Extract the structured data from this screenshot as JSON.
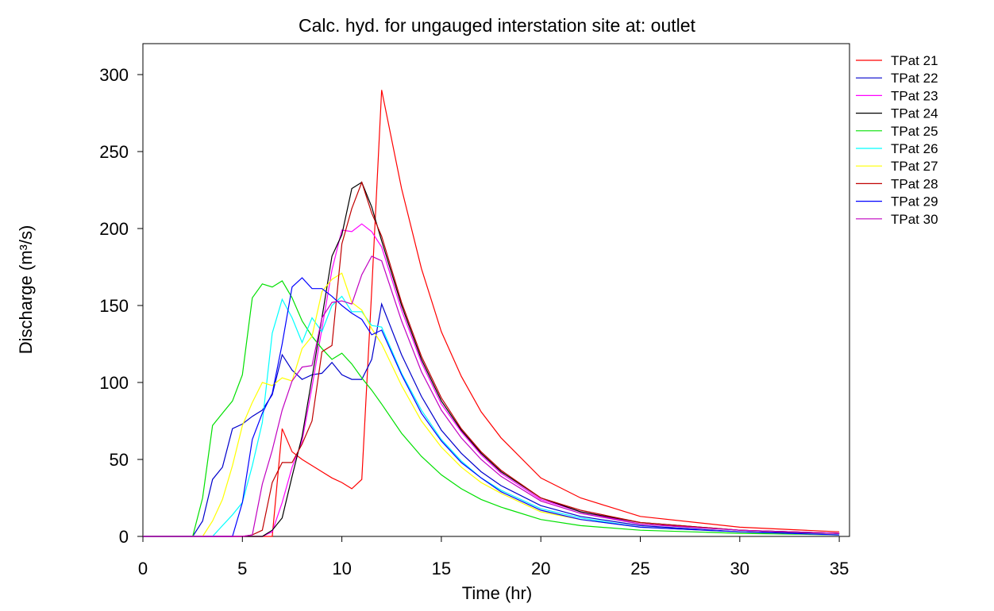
{
  "chart_data": {
    "type": "line",
    "title": "Calc. hyd. for ungauged interstation site at: outlet",
    "xlabel": "Time (hr)",
    "ylabel": "Discharge (m³/s)",
    "xlim": [
      0,
      35
    ],
    "ylim": [
      0,
      320
    ],
    "xticks": [
      0,
      5,
      10,
      15,
      20,
      25,
      30,
      35
    ],
    "yticks": [
      0,
      50,
      100,
      150,
      200,
      250,
      300
    ],
    "grid": false,
    "legend_position": "right",
    "x": [
      0,
      2.5,
      3,
      3.5,
      4,
      4.5,
      5,
      5.5,
      6,
      6.5,
      7,
      7.5,
      8,
      8.5,
      9,
      9.5,
      10,
      10.5,
      11,
      11.5,
      12,
      13,
      14,
      15,
      16,
      17,
      18,
      20,
      22,
      25,
      30,
      35
    ],
    "series": [
      {
        "name": "TPat  21",
        "color": "#ff0000",
        "values": [
          0,
          0,
          0,
          0,
          0,
          0,
          0,
          0,
          0,
          0,
          70,
          55,
          50,
          46,
          42,
          38,
          35,
          31,
          37,
          160,
          290,
          226,
          174,
          133,
          104,
          81,
          64,
          38,
          25,
          13,
          6,
          3
        ]
      },
      {
        "name": "TPat  22",
        "color": "#0000cc",
        "values": [
          0,
          0,
          10,
          37,
          45,
          70,
          73,
          78,
          82,
          92,
          118,
          108,
          102,
          105,
          106,
          113,
          105,
          102,
          102,
          115,
          151,
          118,
          91,
          69,
          54,
          42,
          33,
          20,
          13,
          7,
          3,
          2
        ]
      },
      {
        "name": "TPat  23",
        "color": "#ff00ff",
        "values": [
          0,
          0,
          0,
          0,
          0,
          0,
          0,
          0,
          0,
          3,
          22,
          45,
          62,
          97,
          135,
          173,
          199,
          198,
          203,
          198,
          188,
          147,
          113,
          86,
          68,
          53,
          41,
          24,
          16,
          8,
          4,
          2
        ]
      },
      {
        "name": "TPat  24",
        "color": "#000000",
        "values": [
          0,
          0,
          0,
          0,
          0,
          0,
          0,
          0,
          0,
          4,
          12,
          39,
          65,
          103,
          142,
          182,
          196,
          226,
          230,
          214,
          192,
          150,
          115,
          88,
          69,
          54,
          42,
          25,
          16,
          9,
          4,
          2
        ]
      },
      {
        "name": "TPat  25",
        "color": "#00e000",
        "values": [
          0,
          0,
          25,
          72,
          80,
          88,
          105,
          155,
          164,
          162,
          166,
          155,
          140,
          130,
          122,
          115,
          119,
          112,
          103,
          95,
          86,
          67,
          52,
          40,
          31,
          24,
          19,
          11,
          7,
          4,
          2,
          1
        ]
      },
      {
        "name": "TPat  26",
        "color": "#00ffff",
        "values": [
          0,
          0,
          0,
          0,
          7,
          14,
          22,
          46,
          74,
          132,
          154,
          142,
          126,
          142,
          133,
          150,
          156,
          146,
          146,
          137,
          136,
          106,
          82,
          63,
          49,
          38,
          30,
          18,
          12,
          6,
          3,
          1
        ]
      },
      {
        "name": "TPat  27",
        "color": "#ffff00",
        "values": [
          0,
          0,
          0,
          10,
          24,
          46,
          72,
          87,
          100,
          98,
          103,
          101,
          122,
          130,
          159,
          167,
          171,
          152,
          147,
          135,
          125,
          98,
          75,
          58,
          45,
          35,
          28,
          16,
          11,
          6,
          3,
          1
        ]
      },
      {
        "name": "TPat  28",
        "color": "#c00000",
        "values": [
          0,
          0,
          0,
          0,
          0,
          0,
          0,
          1,
          4,
          35,
          48,
          48,
          60,
          75,
          120,
          124,
          190,
          213,
          230,
          210,
          195,
          152,
          117,
          90,
          70,
          55,
          43,
          25,
          17,
          9,
          4,
          2
        ]
      },
      {
        "name": "TPat  29",
        "color": "#0000ff",
        "values": [
          0,
          0,
          0,
          0,
          0,
          0,
          22,
          63,
          80,
          93,
          125,
          162,
          168,
          161,
          161,
          156,
          150,
          145,
          141,
          131,
          134,
          105,
          80,
          62,
          48,
          38,
          29,
          17,
          11,
          6,
          3,
          1
        ]
      },
      {
        "name": "TPat  30",
        "color": "#c000c0",
        "values": [
          0,
          0,
          0,
          0,
          0,
          0,
          0,
          1,
          34,
          56,
          82,
          101,
          110,
          111,
          142,
          152,
          153,
          151,
          170,
          182,
          179,
          140,
          107,
          82,
          64,
          50,
          39,
          23,
          15,
          8,
          4,
          2
        ]
      }
    ]
  }
}
